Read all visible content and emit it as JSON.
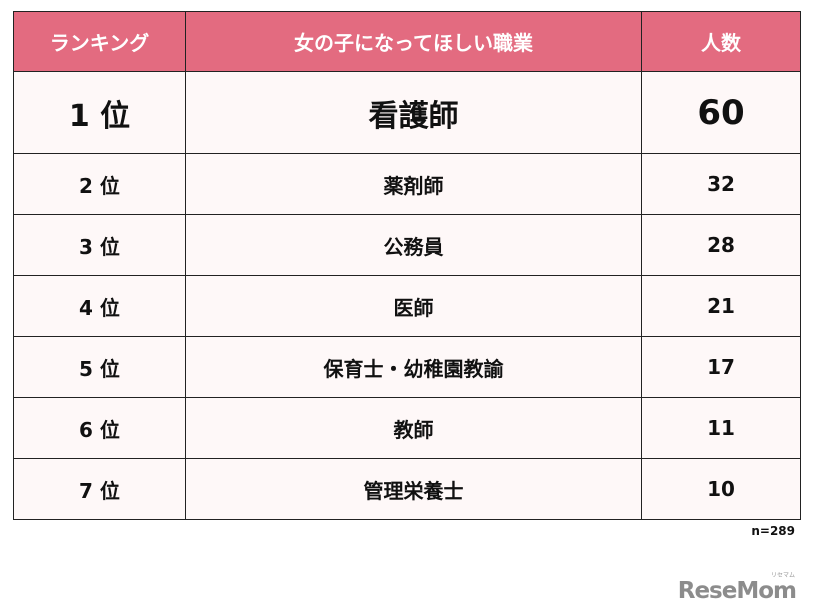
{
  "table": {
    "headers": {
      "rank": "ランキング",
      "job": "女の子になってほしい職業",
      "count": "人数"
    },
    "rows": [
      {
        "rank": "1 位",
        "job": "看護師",
        "count": "60"
      },
      {
        "rank": "2 位",
        "job": "薬剤師",
        "count": "32"
      },
      {
        "rank": "3 位",
        "job": "公務員",
        "count": "28"
      },
      {
        "rank": "4 位",
        "job": "医師",
        "count": "21"
      },
      {
        "rank": "5 位",
        "job": "保育士・幼稚園教諭",
        "count": "17"
      },
      {
        "rank": "6 位",
        "job": "教師",
        "count": "11"
      },
      {
        "rank": "7 位",
        "job": "管理栄養士",
        "count": "10"
      }
    ]
  },
  "chart_data": {
    "type": "table",
    "columns": [
      "ランキング",
      "女の子になってほしい職業",
      "人数"
    ],
    "categories": [
      "看護師",
      "薬剤師",
      "公務員",
      "医師",
      "保育士・幼稚園教諭",
      "教師",
      "管理栄養士"
    ],
    "values": [
      60,
      32,
      28,
      21,
      17,
      11,
      10
    ],
    "annotations": [
      "n=289"
    ]
  },
  "note": {
    "sample_size": "n=289"
  },
  "brand": {
    "logo": "ReseMom",
    "tagline": "リセマム"
  },
  "colors": {
    "header_bg": "#e36b80",
    "header_text": "#ffffff",
    "row_bg": "#fef8f8",
    "border": "#222222"
  }
}
